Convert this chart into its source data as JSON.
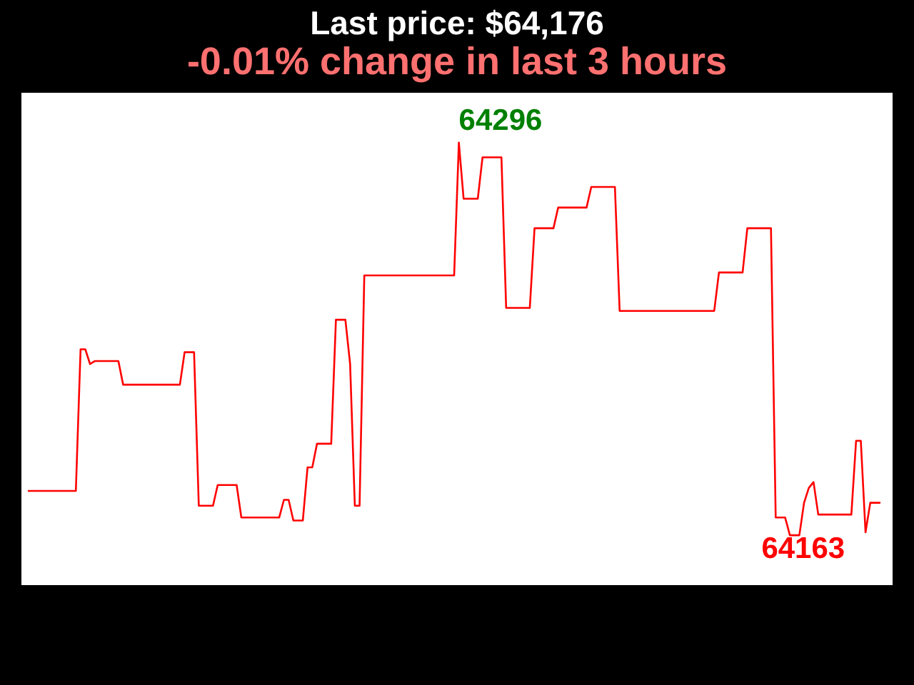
{
  "chart_data": {
    "type": "line",
    "title": "Last price: $64,176",
    "subtitle": "-0.01% change in last 3 hours",
    "tick_labels": false,
    "categories": [
      null,
      null,
      null,
      null,
      null,
      null,
      null,
      null,
      null,
      null,
      null,
      null,
      null,
      null,
      null,
      null,
      null,
      null,
      null,
      null,
      null,
      null,
      null,
      null,
      null,
      null,
      null,
      null,
      null,
      null,
      null,
      null,
      null,
      null,
      null,
      null,
      null,
      null,
      null,
      null,
      null,
      null,
      null,
      null,
      null,
      null,
      null,
      null,
      null,
      null,
      null,
      null,
      null,
      null,
      null,
      null,
      null,
      null,
      null,
      null,
      null,
      null,
      null,
      null,
      null,
      null,
      null,
      null,
      null,
      null,
      null,
      null,
      null,
      null,
      null,
      null,
      null,
      null,
      null,
      null,
      null,
      null,
      null,
      null,
      null,
      null,
      null,
      null,
      null,
      null,
      null,
      null,
      null,
      null,
      null,
      null,
      null,
      null,
      null,
      null,
      null,
      null,
      null,
      null,
      null,
      null,
      null,
      null,
      null,
      null,
      null,
      null,
      null,
      null,
      null,
      null,
      null,
      null,
      null,
      null,
      null,
      null,
      null,
      null,
      null,
      null,
      null,
      null,
      null,
      null,
      null,
      null,
      null,
      null,
      null,
      null,
      null,
      null,
      null,
      null,
      null,
      null,
      null,
      null,
      null,
      null,
      null,
      null,
      null,
      null,
      null,
      null,
      null,
      null,
      null,
      null,
      null,
      null,
      null,
      null,
      null,
      null,
      null,
      null,
      null,
      null,
      null,
      null,
      null,
      null,
      null,
      null,
      null,
      null,
      null,
      null,
      null,
      null,
      null,
      null,
      null
    ],
    "series": [
      {
        "color": "#ff0000",
        "values": [
          64178,
          64178,
          64178,
          64178,
          64178,
          64178,
          64178,
          64178,
          64178,
          64178,
          64178,
          64226,
          64226,
          64221,
          64222,
          64222,
          64222,
          64222,
          64222,
          64222,
          64214,
          64214,
          64214,
          64214,
          64214,
          64214,
          64214,
          64214,
          64214,
          64214,
          64214,
          64214,
          64214,
          64225,
          64225,
          64225,
          64173,
          64173,
          64173,
          64173,
          64180,
          64180,
          64180,
          64180,
          64180,
          64169,
          64169,
          64169,
          64169,
          64169,
          64169,
          64169,
          64169,
          64169,
          64175,
          64175,
          64168,
          64168,
          64168,
          64186,
          64186,
          64194,
          64194,
          64194,
          64194,
          64236,
          64236,
          64236,
          64221,
          64173,
          64173,
          64251,
          64251,
          64251,
          64251,
          64251,
          64251,
          64251,
          64251,
          64251,
          64251,
          64251,
          64251,
          64251,
          64251,
          64251,
          64251,
          64251,
          64251,
          64251,
          64251,
          64296,
          64277,
          64277,
          64277,
          64277,
          64291,
          64291,
          64291,
          64291,
          64291,
          64240,
          64240,
          64240,
          64240,
          64240,
          64240,
          64267,
          64267,
          64267,
          64267,
          64267,
          64274,
          64274,
          64274,
          64274,
          64274,
          64274,
          64274,
          64281,
          64281,
          64281,
          64281,
          64281,
          64281,
          64239,
          64239,
          64239,
          64239,
          64239,
          64239,
          64239,
          64239,
          64239,
          64239,
          64239,
          64239,
          64239,
          64239,
          64239,
          64239,
          64239,
          64239,
          64239,
          64239,
          64239,
          64252,
          64252,
          64252,
          64252,
          64252,
          64252,
          64267,
          64267,
          64267,
          64267,
          64267,
          64267,
          64169,
          64169,
          64169,
          64163,
          64163,
          64163,
          64174,
          64179,
          64181,
          64170,
          64170,
          64170,
          64170,
          64170,
          64170,
          64170,
          64170,
          64195,
          64195,
          64164,
          64174,
          64174,
          64174
        ],
        "value_labels": [
          null,
          null,
          null,
          null,
          null,
          null,
          null,
          null,
          null,
          null,
          null,
          null,
          null,
          null,
          null,
          null,
          null,
          null,
          null,
          null,
          null,
          null,
          null,
          null,
          null,
          null,
          null,
          null,
          null,
          null,
          null,
          null,
          null,
          null,
          null,
          null,
          null,
          null,
          null,
          null,
          null,
          null,
          null,
          null,
          null,
          null,
          null,
          null,
          null,
          null,
          null,
          null,
          null,
          null,
          null,
          null,
          null,
          null,
          null,
          null,
          null,
          null,
          null,
          null,
          null,
          null,
          null,
          null,
          null,
          null,
          null,
          null,
          null,
          null,
          null,
          null,
          null,
          null,
          null,
          null,
          null,
          null,
          null,
          null,
          null,
          null,
          null,
          null,
          null,
          null,
          null,
          "64296",
          null,
          null,
          null,
          null,
          null,
          null,
          null,
          null,
          null,
          null,
          null,
          null,
          null,
          null,
          null,
          null,
          null,
          null,
          null,
          null,
          null,
          null,
          null,
          null,
          null,
          null,
          null,
          null,
          null,
          null,
          null,
          null,
          null,
          null,
          null,
          null,
          null,
          null,
          null,
          null,
          null,
          null,
          null,
          null,
          null,
          null,
          null,
          null,
          null,
          null,
          null,
          null,
          null,
          null,
          null,
          null,
          null,
          null,
          null,
          null,
          null,
          null,
          null,
          null,
          null,
          null,
          null,
          null,
          null,
          null,
          "64163",
          null,
          null,
          null,
          null,
          null,
          null,
          null,
          null,
          null,
          null,
          null,
          null,
          null,
          null,
          null,
          null,
          null,
          null
        ]
      }
    ]
  }
}
